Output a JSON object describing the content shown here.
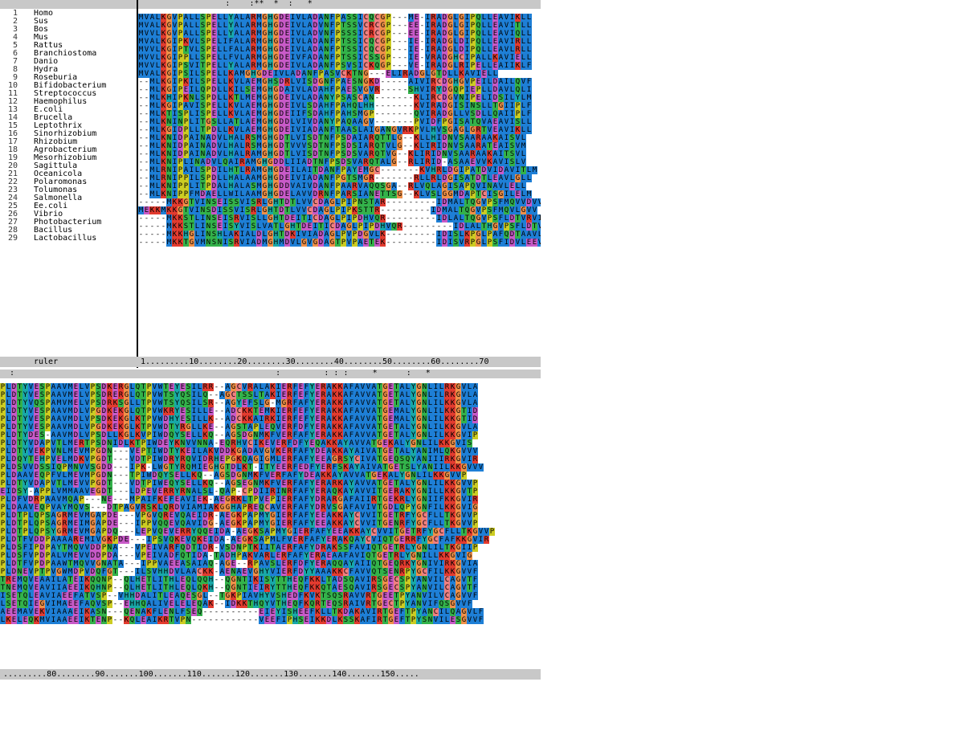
{
  "colors": {
    "hydrophobic": "#1e7fd6",
    "positive": "#e33b2f",
    "negative": "#c85ac8",
    "polar": "#33b24a",
    "glycine": "#f09048",
    "proline": "#cccc22",
    "aromatic": "#18a8a8",
    "cysteine": "#f07f80",
    "header_grey": "#c8c8c8"
  },
  "top_conservation": "                  :    :**  *  :   *                                  ",
  "bottom_conservation": "  :                                                      :         : : :     *      :   *",
  "names_header": "",
  "sequences": [
    {
      "num": "1",
      "name": "Homo",
      "top": "MVALKGVPALLSPELLYALARMGHGDEIVLADANFPASSICQCGP---ME-IRADGLGIPQLLEAVIKLL",
      "bottom": "PLDTYVESPAAVMELVPSDKERGLQTPVWTEYESILRR--AGCVRALAKIERFEFYERAKKAFAVVATGETALYGNLILRKGVLA"
    },
    {
      "num": "2",
      "name": "Sus",
      "top": "MVALKGVPALLSPELLYALARMGHGDEIVLADVNFPTSSVCRCGP---EE-IRADGLGIPQLLEAVITLL",
      "bottom": "PLDTYVESPAAVMELVPSDRERGLQTPVWTSYQSILQ--AGCTSSLTAKIERFEFYERAKKAFAVVATGETALYGNLILRKGVLA"
    },
    {
      "num": "3",
      "name": "Bos",
      "top": "MVVLKGVPALLSPELLYALARMGHGDEIVLADVNFPSSSICRCGP---EE-IRADGLGIPQLLEAVIQLL",
      "bottom": "PLDTYVQSPAMVMELVPSDRKSGLLTPVWTSYQSILSR--AGYEFSLG-MGRFAFYERAKKAFAVVATGETALYGNLILKKGVLA"
    },
    {
      "num": "4",
      "name": "Mus",
      "top": "MVALKGIPKVLSPELIFALARMGHGDEIVLADANFPTSSICQCGP---IE-IRADGLDIPQLLEAVIRLL",
      "bottom": "PLDTYVESPAAVMDLVPGDKEKGLQTPVWKRYESILLE--ADCKKTEMKIERFEFYERAKKAFAVVATGEMALYGNLILKKGTID"
    },
    {
      "num": "5",
      "name": "Rattus",
      "top": "MVVLKGIPTVLSPELLFALARMGHGDEIVLADANFPTSSICQCGP---IE-IRADGLDIPQLLEAVLRLL",
      "bottom": "PLDTYVESPAAVMDLVPSDKEKGLKTPVWDHYESILLK--ADCKKAIRKIERFEFYERAKKAFAVVATGEMALYGNLILKKGTID"
    },
    {
      "num": "6",
      "name": "Branchiostoma",
      "top": "MVVLKGIPPLLSPELLFVLARMGHGDEIVFADANFPTSSICSSGP---IE-VRADGHCIPALLKAVIELL",
      "bottom": "PLDTYVESPAAVMDLVPGDKEKGLKTPVWDTYRGLLKE--AGSTAPLEQVERFDFYERAKKAFAVVATGETALYGNLILKKGVLA"
    },
    {
      "num": "7",
      "name": "Danio",
      "top": "MVVLKGIPSVITPELLYALARMGHGDEIVLADANFPSVSICKQGP---VE-IRADGLRIPELLEAIIKLF",
      "bottom": "PLDTYDES-AAVMDLVPSDLLKGLKVPIWDQYSELLKQ--AGSDGNMKFVERFAFYERAKKAFAVVATGETALYGNLILKKGVIP"
    },
    {
      "num": "8",
      "name": "Hydra",
      "top": "MVALKGIPSILSPELLKAMGHGDEIVLADANFPASVCKTNG---ELIRADGLGTDLLKAVIELL",
      "bottom": "PLDTYVDAPVTLMERTPSDNIDLKTPIWDEYKNVVNNA-EQRHVCIKEVERFDFYEQAKKAYAVVATGEKALYGNLILKKGVIS"
    },
    {
      "num": "9",
      "name": "Roseburia",
      "top": "--MLKGIPKILSPELLKVLAEMGHSDRLVISDGNFPAESNGKD-----AIVIRCDGHGVPEILDAILQVF",
      "bottom": "PLDTYVEKPVNLMEVMPGDN---VEPTIWDTYKEILAKVDDKGADAVGVKERFAFYDEAKKAYAIVATGETALYANIMLQKGVVV"
    },
    {
      "num": "10",
      "name": "Bifidobacterium",
      "top": "--MLKGIPEILQPDLLKILSEMGHGDAIVLADAHFPAESVGVR-----SHVIRYDGQPIEPLLDAVLQLI",
      "bottom": "PLDQYTEHPVELMDKVPGDT---VDTPIWDRYRQVIDRHEPGKQAGIGMLERFAFYEEAGRSYCIVATGEQSQYANIIIRKGVIR"
    },
    {
      "num": "11",
      "name": "Streptococcus",
      "top": "--MLKHIPKNLSPDLLKTLMEMGHGDEIVLADANYPSASCAN-------KLIRCDGVNIPELIDSILYLM",
      "bottom": "PLDSVVDSSIQPMNVVSGDD---IPK-LWGTYRQMIEGHGTDLKT-ITYEERFEDFYERFSKAYAIVATGETSLYANIILKKGVVV"
    },
    {
      "num": "12",
      "name": "Haemophilus",
      "top": "--MLKGIPAVISPELLKVLAEMGHGDEIVLSDAHFPAHQLHH-------KVIRADGISINSLLTGIIPLF",
      "bottom": "PLDAAVEQPFVLMEVMPGDN---TPIWDQYSELLKQ--AGSDGNMKFVERFAFYDEAKKAYAVVATGEKALYGNLILKKGVVP"
    },
    {
      "num": "13",
      "name": "E.coli",
      "top": "--MLKTISPLISPELLKVLAEMGHGDEIIFSDAHFPAHSMGP-------QVIRADGLLVSDLLQAIIPLF",
      "bottom": "PLDTYVDAPVTLMEVVPGDT---VDTPIWEQYSELLKQ--AGSEGNMKFVERFAFYERARKAYAVVATGETALYGNLILKKGVVP"
    },
    {
      "num": "14",
      "name": "Brucella",
      "top": "--MLKNINPLITGSLLATLAEMGHGDDLVIVDANYPAQAAGV-------PVIDFPGISATQVAEAVISLL",
      "bottom": "EIDSY-APPLVMMAAVEGDT---LDPEVERRYRNALSL-QAP-CPDIIRINRFAFYERAQKAYAVVITGERAKYGNILLKKGVTP"
    },
    {
      "num": "15",
      "name": "Leptothrix",
      "top": "--MLKGIDPLLTPDLLKVLAEMGHGDEIVIADANFTAASLAIGANGVRKPVLHVSGAGLGRTVEAVIKLL",
      "bottom": "PLDFVDRPAAVMQAP---NE---MPAIFKEFEAVIEK-AEGRKLTPVEPIERFAFYDRARGAFAIIRTGEKRLYGNIIFKKGVIR"
    },
    {
      "num": "16",
      "name": "Sinorhizobium",
      "top": "--MLKNIDPAINADVLHALRSMGHGDTLVISDTNFPSDAIARQTTLG--KLLHIDNVSAARAAKAISVL",
      "bottom": "PLDAAVEQPVAYMQVS---DTPAGVRSKLQRDVIAMIAKGGHAPREQCAVERFAFYDRVSGAFAVIVTGDLQPYGNFILKKGVIG"
    },
    {
      "num": "17",
      "name": "Rhizobium",
      "top": "--MLKNIDPAINADVLHALRSMGHGDTVVVSDTNFPSDSIARQTVLG--KLIRIDNVSAARATEAISVM",
      "bottom": "PLDTPLQPSAGRMEVMGAPDE---VPGVQREVQAEIDR-AEGKPAPMYGIERFAFYEEAKKAYCVVITGETRFYGCFLLTKGVVP"
    },
    {
      "num": "18",
      "name": "Agrobacterium",
      "top": "--MLKNIDPAINADVLHALRAMGHGDTLVISDTNFPSDSVARQTVG--KLIRIDNVSAARAAKAITSVL",
      "bottom": "PLDTPLQPSAGRMEIMGAPDE---IPPVQQEVQAVIDG-AEGKPAPMYGIERFAFYEEAKKAYCVVITGENRFYGCFLLTKGVVP"
    },
    {
      "num": "19",
      "name": "Mesorhizobium",
      "top": "--MLKNIPLINADVLQAIRAMGHGDDLIIADTNFPSDSVARQTALG--RLIRID-ASAAEVVKAVISLV",
      "bottom": "PLDTPLQPSYGRMEVMGAPDQ---LEPVQEVERRYQQEIDA-AEGKSAPMYGIERFAFYEEAKKAYCVVITGETRFYGCFLLTKGVVP"
    },
    {
      "num": "20",
      "name": "Sagittula",
      "top": "--MLRNIPAILSPDILHTLRAMGHGDEILAITDANFPAYEMGC-------KVHRLDGIPATDVIDAVITLM",
      "bottom": "PLDTFVDDPAAAAREMIVGKPDE---IPSVQKEVQKEIDA-AEGKSAPMLFVERFAFYERAKQAYCVIQTGERRFYGCFAFKKGVIR"
    },
    {
      "num": "21",
      "name": "Oceanicola",
      "top": "--MLRNIPPILSPDLLHALAAMGHGDEIVIADANFPGTSMGR-------RLLRLDGISATDTLEAVLGLL",
      "bottom": "PLDSFIPDPAYTMQVVDDPNA---VPEIVARFQDTIDR-VSDNPTKIITAERFAFYDRAKSSFAVIQTGETRLYGNLILTKGIIP"
    },
    {
      "num": "22",
      "name": "Polaromonas",
      "top": "--MLKNIPPLITPDALHALASMGHGDDVAIVDANFPAARVAQQSGA--RLVQLAGISAPQVINAVLELL",
      "bottom": "PLDSFVPDPALVMEVVDDPDA---VPEIVADFQTIDA-TADHPAKVARLERFAFYERAEAAFAVIQTGETRLYGNILLKKGVIG"
    },
    {
      "num": "23",
      "name": "Tolumonas",
      "top": "--MLKNIPPFMDAELLWILAAMGHGDELAVVDRNFPARSIANETTSG--KLVSLGGMDAPTCISGILELM",
      "bottom": "PLDTFVPDPAAWTMQVVGNATA---IPPVAEEASAIAQ-AGE--RPAVSLERFDFYERAQQAYAIIQTGEQRKYGNIVIRKGVIA"
    },
    {
      "num": "24",
      "name": "Salmonella",
      "top": "-----MKKGTVINSEISSVISRLGHTDTLVVCDAGLPIPNSTAR---------IDMALTQGVPSFMQVVDVV",
      "bottom": "PLDNEVPTPVGWMDPVDQFGT---ILSVHHDVLAACKK-AENAEVGHYVIERFDYYAAAKKCFAVVQTSENRPYGCFILKKGVVF"
    },
    {
      "num": "25",
      "name": "Ee.coli",
      "top": "MEKKMKKGTVINSDISSVISRLGHTDTLVVCDAGLPIPKSTTR---------IDMALTQGVPSFMQVLGVV",
      "bottom": "TREMQVEAAILATEIKQQNP--QLHETLITHLEQLQQH--QGNTIKISYTTHEQFKKLTADSQAVIRSGECSPYANVILCAGVTF"
    },
    {
      "num": "26",
      "name": "Vibrio",
      "top": "-----MKKSTLINSEISRVISLLGHTDEITICDAGLPIPDHVQR---------IDLALTQGVPSFLDTVRVI",
      "bottom": "TNEMQVEAVIIAEEIKQHNP--QLHETLITHLEQLQKH--QGNTIEIRYTTHEQFKKQTAESQAVIRSGECSPYANVILCAGVTF"
    },
    {
      "num": "27",
      "name": "Photobacterium",
      "top": "-----MKKSTLINSEISYVISLVATLGHTDEITICDAGLPIPDHVQR---------IDLALTHGVPSFLDTVRAM",
      "bottom": "ISETQLEAVIAEEFATVSP--VHHDALITLEAQESGL--TGKPIAVHYVSHEDFKVKTSQSRAVVRTGEETPYANVILVCAGVVF"
    },
    {
      "num": "28",
      "name": "Bacillus",
      "top": "-----MKKHGLINSHLAKIALDLGHTDKIVIADAGLPVPDGVLK---------IDISLKPGLPAFQDTAAVL",
      "bottom": "LSETQIEGVIMAEEFAQVSP--EHHQALIVELELEQAK--IDKKTHQYVTHEQFKQRTEQSRAIVRTGECTPYANVIFQSGVVF"
    },
    {
      "num": "29",
      "name": "Lactobacillus",
      "top": "-----MKKTGVMNSNISRVIADMGHMDVLGVGDAGTPVPAETEK---------IDISVRPGLPSFIDVLEEV",
      "bottom": "AEEMAVEKVIAAAEIKASN---QENAKFLENLFSEQ----------EIEYISHEEFKLLTKDAKAVIRTGEFTPYANCILQAGVLF"
    },
    {
      "num": "",
      "name": "",
      "top": "",
      "bottom": "LKELEQKMVIAAEEIKTENP--KQLEAIKRTVPN------------VEEFIPHSEIKKDLKSSKAFIRTGEFTPYSNVILESGVVF"
    }
  ],
  "ruler": {
    "label": "ruler",
    "top_text": "1.........10........20........30........40........50........60........70",
    "bottom_text": ".........80........90.......100.......110.......120.......130.......140.......150....."
  }
}
